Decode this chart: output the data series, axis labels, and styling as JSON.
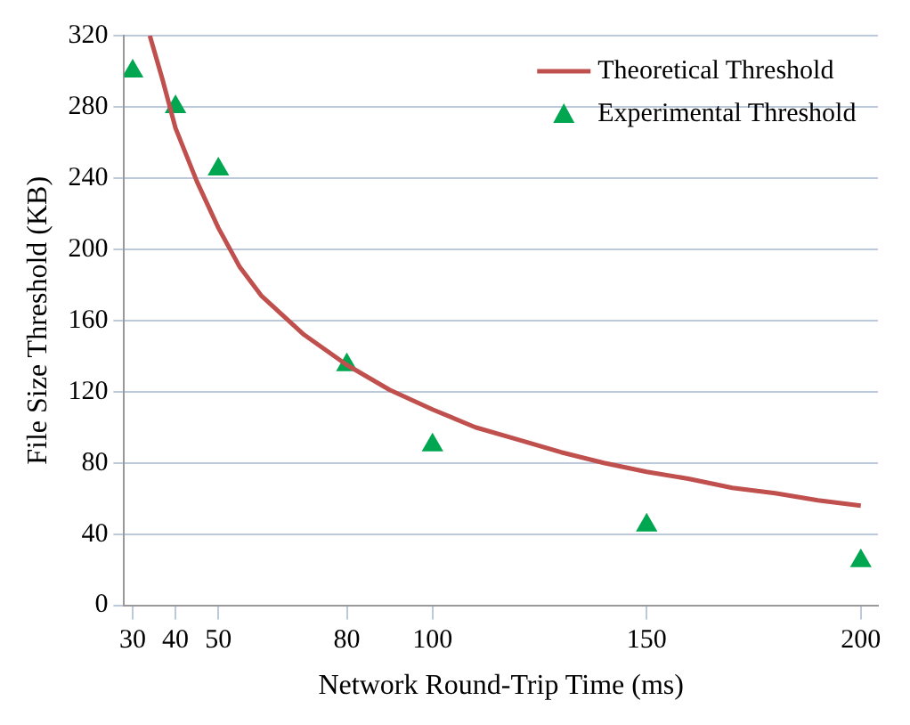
{
  "chart_data": {
    "type": "line",
    "xlabel": "Network Round-Trip Time (ms)",
    "ylabel": "File Size Threshold (KB)",
    "xlim": [
      28,
      204
    ],
    "xticks": [
      30,
      40,
      50,
      80,
      100,
      150,
      200
    ],
    "ylim": [
      0,
      320
    ],
    "yticks": [
      0,
      40,
      80,
      120,
      160,
      200,
      240,
      280,
      320
    ],
    "grid": "y",
    "legend": "top right",
    "series": [
      {
        "name": "Theoretical Threshold",
        "marker": "none",
        "color": "#c0504d",
        "x": [
          34,
          37,
          40,
          45,
          50,
          55,
          60,
          70,
          80,
          90,
          100,
          110,
          120,
          130,
          140,
          150,
          160,
          170,
          180,
          190,
          200
        ],
        "values": [
          320,
          295,
          268,
          238,
          212,
          190,
          174,
          152,
          135,
          121,
          110,
          100,
          93,
          86,
          80,
          75,
          71,
          66,
          63,
          59,
          56
        ]
      },
      {
        "name": "Experimental Threshold",
        "type": "scatter",
        "marker": "triangle",
        "color": "#00a650",
        "x": [
          30,
          40,
          50,
          80,
          100,
          150,
          200
        ],
        "values": [
          300,
          280,
          245,
          135,
          90,
          45,
          25
        ]
      }
    ]
  }
}
